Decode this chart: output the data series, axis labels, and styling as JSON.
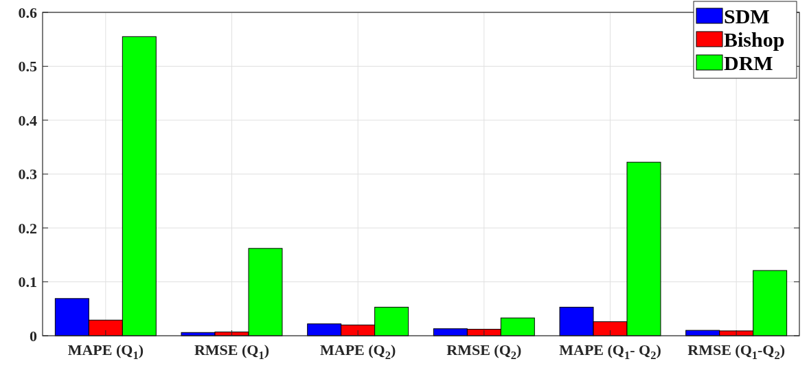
{
  "chart_data": {
    "type": "bar",
    "categories": [
      "MAPE (Q$_{1}$)",
      "RMSE (Q$_{1}$)",
      "MAPE (Q$_{2}$)",
      "RMSE (Q$_{2}$)",
      "MAPE (Q$_{1}$- Q$_{2}$)",
      "RMSE (Q$_{1}$-Q$_{2}$)"
    ],
    "series": [
      {
        "name": "SDM",
        "color": "#0000ff",
        "values": [
          0.069,
          0.006,
          0.022,
          0.013,
          0.053,
          0.01
        ]
      },
      {
        "name": "Bishop",
        "color": "#ff0000",
        "values": [
          0.029,
          0.007,
          0.02,
          0.012,
          0.026,
          0.009
        ]
      },
      {
        "name": "DRM",
        "color": "#00ff00",
        "values": [
          0.555,
          0.162,
          0.053,
          0.033,
          0.322,
          0.121
        ]
      }
    ],
    "ylim": [
      0,
      0.6
    ],
    "yticks": [
      0,
      0.1,
      0.2,
      0.3,
      0.4,
      0.5,
      0.6
    ],
    "grid": true,
    "legend": "top right"
  }
}
